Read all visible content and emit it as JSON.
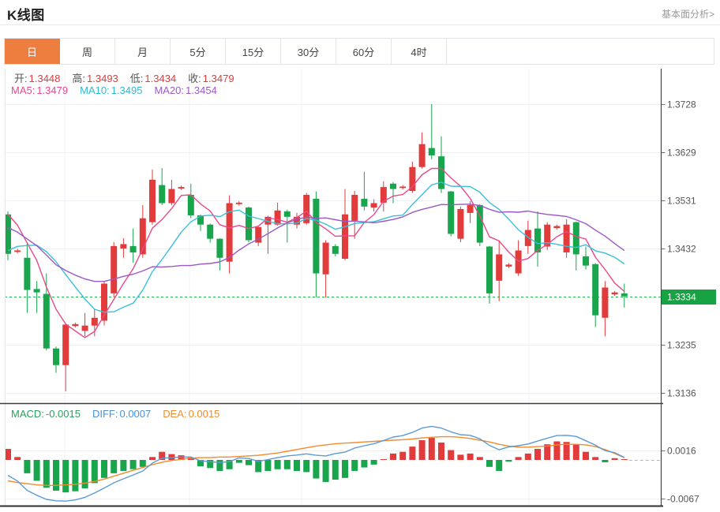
{
  "header": {
    "title": "K线图",
    "link": "基本面分析>"
  },
  "tabs": {
    "items": [
      {
        "name": "day",
        "label": "日",
        "active": true
      },
      {
        "name": "week",
        "label": "周",
        "active": false
      },
      {
        "name": "month",
        "label": "月",
        "active": false
      },
      {
        "name": "5min",
        "label": "5分",
        "active": false
      },
      {
        "name": "15min",
        "label": "15分",
        "active": false
      },
      {
        "name": "30min",
        "label": "30分",
        "active": false
      },
      {
        "name": "60min",
        "label": "60分",
        "active": false
      },
      {
        "name": "4hour",
        "label": "4时",
        "active": false
      }
    ]
  },
  "ohlc_legend": {
    "items": [
      {
        "name": "open",
        "label": "开:",
        "value": "1.3448"
      },
      {
        "name": "high",
        "label": "高:",
        "value": "1.3493"
      },
      {
        "name": "low",
        "label": "低:",
        "value": "1.3434"
      },
      {
        "name": "close",
        "label": "收:",
        "value": "1.3479"
      }
    ]
  },
  "ma_legend": {
    "items": [
      {
        "name": "ma5",
        "label": "MA5:",
        "value": "1.3479",
        "color": "#e9498b"
      },
      {
        "name": "ma10",
        "label": "MA10:",
        "value": "1.3495",
        "color": "#2fb9d2"
      },
      {
        "name": "ma20",
        "label": "MA20:",
        "value": "1.3454",
        "color": "#9c59c6"
      }
    ]
  },
  "macd_legend": {
    "items": [
      {
        "name": "macd",
        "label": "MACD:",
        "value": "-0.0015",
        "color": "#2ba05c"
      },
      {
        "name": "diff",
        "label": "DIFF:",
        "value": "0.0007",
        "color": "#4a90d9"
      },
      {
        "name": "dea",
        "label": "DEA:",
        "value": "0.0015",
        "color": "#f08c2e"
      }
    ]
  },
  "colors": {
    "accent_tab": "#ee7e40",
    "up": "#e23b3c",
    "down": "#18a54c",
    "ma5": "#e9498b",
    "ma10": "#3bbfd9",
    "ma20": "#9c59c6",
    "diff": "#5b9bd5",
    "dea": "#f08c2e",
    "grid": "#edf1f6",
    "axis_dark": "#454545",
    "tick_text": "#555555",
    "legend_label": "#555555",
    "price_line": "#2bad52",
    "tag_bg": "#17a344",
    "tag_text": "#ffffff",
    "zero_dash": "#8fc1e8",
    "tab_border": "#e1e5e9",
    "left_border": "#e5e5e5"
  },
  "chart_data": {
    "type": "candlestick+macd",
    "title": "K线图",
    "legend_position": "top-left",
    "grid": true,
    "price_pane": {
      "yticks": [
        "1.3728",
        "1.3629",
        "1.3531",
        "1.3432",
        "1.3334",
        "1.3235",
        "1.3136"
      ],
      "ylim": [
        1.3136,
        1.3728
      ],
      "highlighted_tick": "1.3334",
      "current_price": "1.3334",
      "ma_periods": [
        5,
        10,
        20
      ],
      "ma_prehistory_closes": [
        1.362,
        1.3625,
        1.362,
        1.361,
        1.359,
        1.351,
        1.347,
        1.343,
        1.339,
        1.336,
        1.334,
        1.333,
        1.3335,
        1.336,
        1.34,
        1.354,
        1.353,
        1.352,
        1.35
      ],
      "candles_ohlc": [
        [
          1.3502,
          1.3508,
          1.3408,
          1.3421
        ],
        [
          1.3425,
          1.3431,
          1.3422,
          1.3428
        ],
        [
          1.3413,
          1.3444,
          1.33,
          1.3347
        ],
        [
          1.3349,
          1.3365,
          1.33,
          1.3342
        ],
        [
          1.3339,
          1.3381,
          1.3223,
          1.3227
        ],
        [
          1.3227,
          1.3231,
          1.3177,
          1.3193
        ],
        [
          1.3193,
          1.3279,
          1.3139,
          1.3276
        ],
        [
          1.3273,
          1.328,
          1.327,
          1.3277
        ],
        [
          1.3263,
          1.33,
          1.3252,
          1.3274
        ],
        [
          1.3274,
          1.3307,
          1.3252,
          1.329
        ],
        [
          1.3284,
          1.3365,
          1.3274,
          1.336
        ],
        [
          1.334,
          1.3445,
          1.3332,
          1.3437
        ],
        [
          1.3432,
          1.3453,
          1.3413,
          1.3441
        ],
        [
          1.3437,
          1.3473,
          1.3403,
          1.3424
        ],
        [
          1.342,
          1.3521,
          1.3413,
          1.3494
        ],
        [
          1.3486,
          1.3594,
          1.3481,
          1.3573
        ],
        [
          1.3562,
          1.3597,
          1.3521,
          1.3525
        ],
        [
          1.3525,
          1.3573,
          1.3521,
          1.3554
        ],
        [
          1.3555,
          1.3561,
          1.3552,
          1.3558
        ],
        [
          1.3542,
          1.3565,
          1.3494,
          1.35
        ],
        [
          1.35,
          1.3502,
          1.3468,
          1.3481
        ],
        [
          1.3481,
          1.3483,
          1.3444,
          1.3452
        ],
        [
          1.3452,
          1.3453,
          1.3387,
          1.3413
        ],
        [
          1.3405,
          1.3541,
          1.3381,
          1.3525
        ],
        [
          1.3523,
          1.3529,
          1.352,
          1.3526
        ],
        [
          1.3516,
          1.3518,
          1.3445,
          1.3449
        ],
        [
          1.3444,
          1.3478,
          1.3437,
          1.3476
        ],
        [
          1.3481,
          1.3499,
          1.3421,
          1.3497
        ],
        [
          1.3481,
          1.3526,
          1.3479,
          1.351
        ],
        [
          1.3508,
          1.3512,
          1.3444,
          1.3497
        ],
        [
          1.3481,
          1.3505,
          1.3473,
          1.3497
        ],
        [
          1.3484,
          1.3546,
          1.3481,
          1.3542
        ],
        [
          1.3534,
          1.3549,
          1.3332,
          1.3381
        ],
        [
          1.3379,
          1.3449,
          1.3331,
          1.3444
        ],
        [
          1.3437,
          1.3441,
          1.3416,
          1.3421
        ],
        [
          1.3411,
          1.3554,
          1.3408,
          1.3502
        ],
        [
          1.3489,
          1.355,
          1.3452,
          1.3542
        ],
        [
          1.3534,
          1.3589,
          1.351,
          1.3518
        ],
        [
          1.3516,
          1.3533,
          1.3508,
          1.3525
        ],
        [
          1.3526,
          1.357,
          1.3508,
          1.3558
        ],
        [
          1.3565,
          1.3568,
          1.3525,
          1.3554
        ],
        [
          1.3556,
          1.3562,
          1.3553,
          1.3559
        ],
        [
          1.355,
          1.361,
          1.3546,
          1.3599
        ],
        [
          1.3599,
          1.367,
          1.3596,
          1.3646
        ],
        [
          1.3638,
          1.3728,
          1.3615,
          1.3623
        ],
        [
          1.3621,
          1.3662,
          1.3546,
          1.3554
        ],
        [
          1.3549,
          1.355,
          1.3457,
          1.3462
        ],
        [
          1.3452,
          1.3518,
          1.3445,
          1.3513
        ],
        [
          1.3505,
          1.3529,
          1.3484,
          1.3521
        ],
        [
          1.3521,
          1.3523,
          1.3437,
          1.3444
        ],
        [
          1.3436,
          1.3437,
          1.3319,
          1.334
        ],
        [
          1.3366,
          1.3449,
          1.3324,
          1.342
        ],
        [
          1.3395,
          1.3402,
          1.3392,
          1.3399
        ],
        [
          1.3381,
          1.3449,
          1.3376,
          1.3428
        ],
        [
          1.3437,
          1.3489,
          1.3421,
          1.347
        ],
        [
          1.3473,
          1.3508,
          1.3395,
          1.3424
        ],
        [
          1.3436,
          1.3486,
          1.3429,
          1.3481
        ],
        [
          1.3474,
          1.3481,
          1.3471,
          1.3478
        ],
        [
          1.3424,
          1.3492,
          1.3413,
          1.3481
        ],
        [
          1.3486,
          1.3487,
          1.3387,
          1.342
        ],
        [
          1.3416,
          1.3436,
          1.3389,
          1.3397
        ],
        [
          1.34,
          1.3402,
          1.3271,
          1.3295
        ],
        [
          1.329,
          1.3365,
          1.3252,
          1.3352
        ],
        [
          1.3338,
          1.3345,
          1.3335,
          1.3342
        ],
        [
          1.334,
          1.336,
          1.3311,
          1.3334
        ]
      ]
    },
    "macd_pane": {
      "yticks": [
        "0.0016",
        "-0.0067"
      ],
      "tick_values": [
        0.0016,
        -0.0067
      ],
      "hist": [
        0.0019,
        0.0005,
        -0.0023,
        -0.0036,
        -0.0048,
        -0.0053,
        -0.0056,
        -0.0054,
        -0.0049,
        -0.004,
        -0.0031,
        -0.0023,
        -0.0019,
        -0.0016,
        -0.0012,
        0.0005,
        0.0014,
        0.001,
        0.0008,
        0.0004,
        -0.0011,
        -0.0014,
        -0.0019,
        -0.0016,
        -0.0005,
        -0.0009,
        -0.0021,
        -0.0019,
        -0.0016,
        -0.0016,
        -0.0019,
        -0.0021,
        -0.0032,
        -0.0038,
        -0.0034,
        -0.0031,
        -0.0019,
        -0.0013,
        -0.0008,
        0.0001,
        0.0011,
        0.0014,
        0.0023,
        0.0034,
        0.0038,
        0.003,
        0.0017,
        0.0009,
        0.0011,
        0.0005,
        -0.0012,
        -0.0019,
        -0.0003,
        0.0005,
        0.0011,
        0.0019,
        0.0027,
        0.0032,
        0.0031,
        0.0027,
        0.0014,
        0.0005,
        -0.0004,
        0.0003,
        0.0001
      ],
      "dea": [
        -0.0036,
        -0.0039,
        -0.0041,
        -0.0043,
        -0.0044,
        -0.0044,
        -0.0043,
        -0.0042,
        -0.004,
        -0.0037,
        -0.0033,
        -0.0028,
        -0.0023,
        -0.0018,
        -0.0013,
        -0.0008,
        -0.0004,
        -0.0001,
        0.0001,
        0.0003,
        0.0004,
        0.0004,
        0.0005,
        0.0005,
        0.0006,
        0.0007,
        0.0008,
        0.001,
        0.0012,
        0.0015,
        0.0018,
        0.0021,
        0.0024,
        0.0026,
        0.0028,
        0.0029,
        0.003,
        0.0031,
        0.0032,
        0.0033,
        0.0034,
        0.0035,
        0.0036,
        0.0038,
        0.0039,
        0.004,
        0.004,
        0.0039,
        0.0037,
        0.0034,
        0.0031,
        0.0027,
        0.0024,
        0.0022,
        0.0022,
        0.0023,
        0.0024,
        0.0026,
        0.0027,
        0.0027,
        0.0026,
        0.0023,
        0.0018,
        0.0011,
        0.0004
      ],
      "diff_rule": "diff[i] = dea[i] + hist[i]/2"
    }
  }
}
